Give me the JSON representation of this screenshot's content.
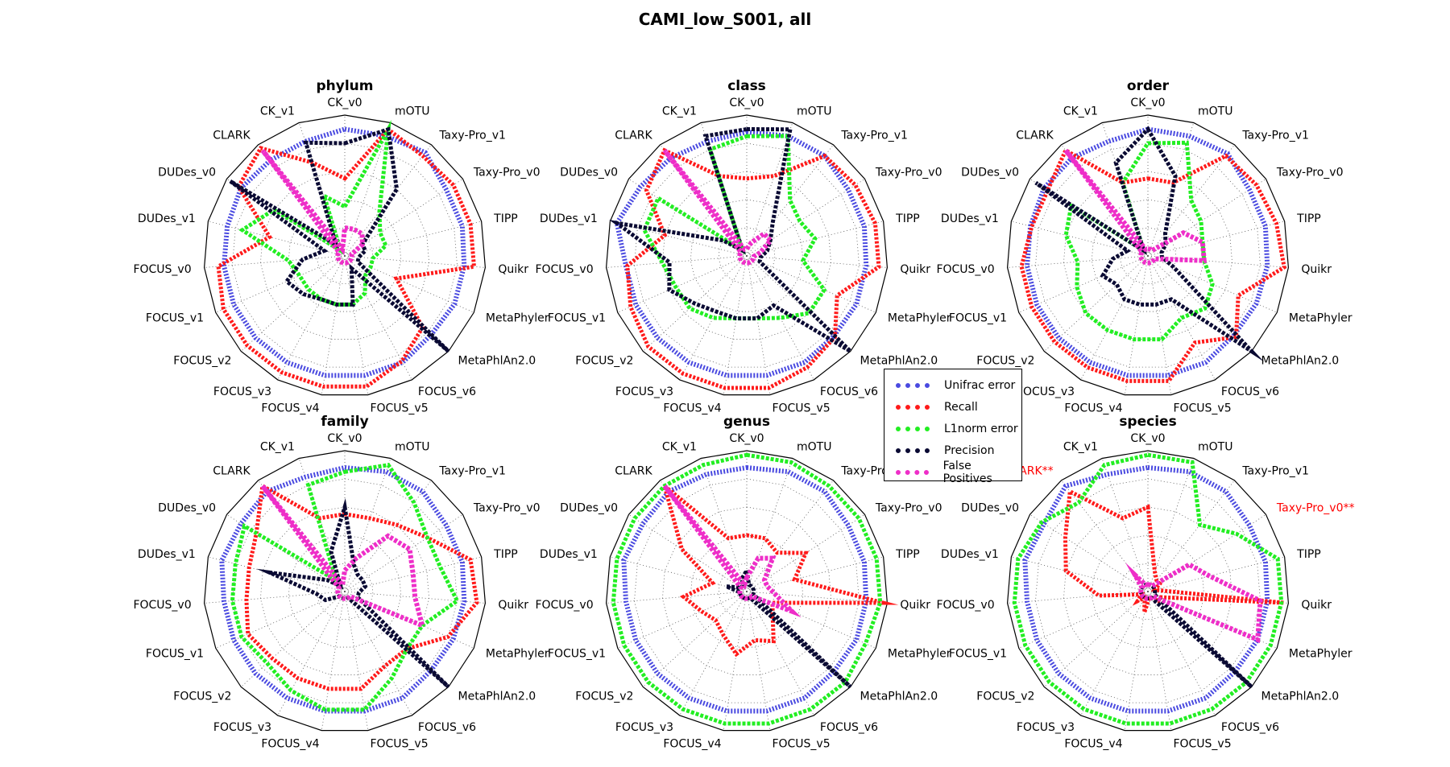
{
  "figure_title": "CAMI_low_S001, all",
  "legend": [
    {
      "key": "unifrac",
      "label": "Unifrac error",
      "color": "#4a4ae0"
    },
    {
      "key": "recall",
      "label": "Recall",
      "color": "#ff1a1a"
    },
    {
      "key": "l1norm",
      "label": "L1norm error",
      "color": "#22ee22"
    },
    {
      "key": "precision",
      "label": "Precision",
      "color": "#0a0a33"
    },
    {
      "key": "fp",
      "label": "False Positives",
      "color": "#ee2ec8"
    }
  ],
  "chart_data": [
    {
      "type": "radar",
      "title": "phylum",
      "axes": [
        "CK_v0",
        "mOTU",
        "Taxy-Pro_v1",
        "Taxy-Pro_v0",
        "TIPP",
        "Quikr",
        "MetaPhyler",
        "MetaPhlAn2.0",
        "FOCUS_v6",
        "FOCUS_v5",
        "FOCUS_v4",
        "FOCUS_v3",
        "FOCUS_v2",
        "FOCUS_v1",
        "FOCUS_v0",
        "DUDes_v1",
        "DUDes_v0",
        "CLARK",
        "CK_v1"
      ],
      "highlighted_axes": [],
      "rlim": [
        0,
        1
      ],
      "grid": true,
      "series": [
        {
          "name": "Unifrac error",
          "values": [
            0.9,
            0.9,
            0.93,
            0.86,
            0.86,
            0.85,
            0.85,
            0.83,
            0.86,
            0.86,
            0.86,
            0.86,
            0.86,
            0.86,
            0.86,
            0.86,
            0.88,
            0.86,
            0.86
          ]
        },
        {
          "name": "Recall",
          "values": [
            0.55,
            0.95,
            0.9,
            0.92,
            0.92,
            0.92,
            0.4,
            0.75,
            0.85,
            0.94,
            0.94,
            0.94,
            0.94,
            0.94,
            0.9,
            0.55,
            0.9,
            0.97,
            0.7
          ]
        },
        {
          "name": "L1norm error",
          "values": [
            0.35,
            0.95,
            0.4,
            0.3,
            0.3,
            0.2,
            0.2,
            0.2,
            0.3,
            0.35,
            0.35,
            0.35,
            0.35,
            0.35,
            0.4,
            0.75,
            0.6,
            0.05,
            0.45
          ]
        },
        {
          "name": "Precision",
          "values": [
            0.8,
            0.95,
            0.6,
            0.15,
            0.15,
            0.1,
            0.1,
            1.0,
            0.1,
            0.35,
            0.35,
            0.35,
            0.4,
            0.45,
            0.3,
            0.15,
            0.97,
            0.1,
            0.85
          ]
        },
        {
          "name": "False Positives",
          "values": [
            0.2,
            0.2,
            0.2,
            0.15,
            0.05,
            0.05,
            0.05,
            0.05,
            0.05,
            0.05,
            0.05,
            0.05,
            0.05,
            0.05,
            0.05,
            0.05,
            0.05,
            0.95,
            0.05
          ]
        }
      ]
    },
    {
      "type": "radar",
      "title": "class",
      "axes": [
        "CK_v0",
        "mOTU",
        "Taxy-Pro_v1",
        "Taxy-Pro_v0",
        "TIPP",
        "Quikr",
        "MetaPhyler",
        "MetaPhlAn2.0",
        "FOCUS_v6",
        "FOCUS_v5",
        "FOCUS_v4",
        "FOCUS_v3",
        "FOCUS_v2",
        "FOCUS_v1",
        "FOCUS_v0",
        "DUDes_v1",
        "DUDes_v0",
        "CLARK",
        "CK_v1"
      ],
      "highlighted_axes": [],
      "rlim": [
        0,
        1
      ],
      "grid": true,
      "series": [
        {
          "name": "Unifrac error",
          "values": [
            0.88,
            0.9,
            0.9,
            0.86,
            0.86,
            0.85,
            0.85,
            0.84,
            0.86,
            0.86,
            0.86,
            0.86,
            0.86,
            0.86,
            0.86,
            0.95,
            0.9,
            0.88,
            0.86
          ]
        },
        {
          "name": "Recall",
          "values": [
            0.55,
            0.6,
            0.9,
            0.92,
            0.94,
            0.94,
            0.7,
            0.85,
            0.9,
            0.95,
            0.95,
            0.95,
            0.95,
            0.9,
            0.85,
            0.6,
            0.85,
            0.95,
            0.6
          ]
        },
        {
          "name": "L1norm error",
          "values": [
            0.85,
            0.9,
            0.5,
            0.45,
            0.5,
            0.4,
            0.6,
            0.6,
            0.5,
            0.45,
            0.45,
            0.5,
            0.55,
            0.55,
            0.6,
            0.75,
            0.75,
            0.05,
            0.8
          ]
        },
        {
          "name": "Precision",
          "values": [
            0.9,
            0.95,
            0.3,
            0.2,
            0.15,
            0.1,
            0.1,
            1.0,
            0.4,
            0.45,
            0.45,
            0.45,
            0.5,
            0.6,
            0.55,
            0.95,
            0.2,
            0.05,
            0.9
          ]
        },
        {
          "name": "False Positives",
          "values": [
            0.05,
            0.1,
            0.2,
            0.2,
            0.1,
            0.05,
            0.05,
            0.05,
            0.05,
            0.05,
            0.05,
            0.05,
            0.05,
            0.05,
            0.05,
            0.05,
            0.05,
            0.95,
            0.05
          ]
        }
      ]
    },
    {
      "type": "radar",
      "title": "order",
      "axes": [
        "CK_v0",
        "mOTU",
        "Taxy-Pro_v1",
        "Taxy-Pro_v0",
        "TIPP",
        "Quikr",
        "MetaPhyler",
        "MetaPhlAn2.0",
        "FOCUS_v6",
        "FOCUS_v5",
        "FOCUS_v4",
        "FOCUS_v3",
        "FOCUS_v2",
        "FOCUS_v1",
        "FOCUS_v0",
        "DUDes_v1",
        "DUDes_v0",
        "CLARK",
        "CK_v1"
      ],
      "highlighted_axes": [],
      "rlim": [
        0,
        1
      ],
      "grid": true,
      "series": [
        {
          "name": "Unifrac error",
          "values": [
            0.9,
            0.9,
            0.92,
            0.86,
            0.86,
            0.85,
            0.84,
            0.83,
            0.86,
            0.86,
            0.86,
            0.86,
            0.86,
            0.86,
            0.86,
            0.86,
            0.88,
            0.88,
            0.86
          ]
        },
        {
          "name": "Recall",
          "values": [
            0.55,
            0.55,
            0.9,
            0.92,
            0.94,
            0.97,
            0.7,
            0.85,
            0.7,
            0.9,
            0.9,
            0.9,
            0.9,
            0.9,
            0.9,
            0.85,
            0.85,
            0.95,
            0.55
          ]
        },
        {
          "name": "L1norm error",
          "values": [
            0.8,
            0.85,
            0.5,
            0.45,
            0.4,
            0.4,
            0.5,
            0.55,
            0.5,
            0.6,
            0.6,
            0.6,
            0.6,
            0.55,
            0.5,
            0.6,
            0.65,
            0.05,
            0.55
          ]
        },
        {
          "name": "Precision",
          "values": [
            0.9,
            0.6,
            0.2,
            0.15,
            0.1,
            0.1,
            0.2,
            1.0,
            0.35,
            0.35,
            0.35,
            0.35,
            0.3,
            0.35,
            0.25,
            0.15,
            0.95,
            0.05,
            0.7
          ]
        },
        {
          "name": "False Positives",
          "values": [
            0.05,
            0.05,
            0.05,
            0.3,
            0.4,
            0.4,
            0.05,
            0.05,
            0.05,
            0.05,
            0.05,
            0.05,
            0.05,
            0.05,
            0.05,
            0.05,
            0.05,
            0.95,
            0.05
          ]
        }
      ]
    },
    {
      "type": "radar",
      "title": "family",
      "axes": [
        "CK_v0",
        "mOTU",
        "Taxy-Pro_v1",
        "Taxy-Pro_v0",
        "TIPP",
        "Quikr",
        "MetaPhyler",
        "MetaPhlAn2.0",
        "FOCUS_v6",
        "FOCUS_v5",
        "FOCUS_v4",
        "FOCUS_v3",
        "FOCUS_v2",
        "FOCUS_v1",
        "FOCUS_v0",
        "DUDes_v1",
        "DUDes_v0",
        "CLARK",
        "CK_v1"
      ],
      "highlighted_axes": [],
      "rlim": [
        0,
        1
      ],
      "grid": true,
      "series": [
        {
          "name": "Unifrac error",
          "values": [
            0.88,
            0.9,
            0.9,
            0.86,
            0.86,
            0.85,
            0.84,
            0.83,
            0.86,
            0.86,
            0.86,
            0.86,
            0.86,
            0.86,
            0.86,
            0.9,
            0.88,
            0.9,
            0.86
          ]
        },
        {
          "name": "Recall",
          "values": [
            0.55,
            0.55,
            0.6,
            0.7,
            0.92,
            0.94,
            0.8,
            0.6,
            0.6,
            0.7,
            0.7,
            0.7,
            0.7,
            0.75,
            0.7,
            0.7,
            0.75,
            0.95,
            0.55
          ]
        },
        {
          "name": "L1norm error",
          "values": [
            0.85,
            0.95,
            0.8,
            0.7,
            0.7,
            0.8,
            0.6,
            0.6,
            0.7,
            0.85,
            0.85,
            0.8,
            0.75,
            0.8,
            0.8,
            0.8,
            0.85,
            0.1,
            0.8
          ]
        },
        {
          "name": "Precision",
          "values": [
            0.6,
            0.2,
            0.15,
            0.15,
            0.15,
            0.1,
            0.1,
            1.0,
            0.05,
            0.05,
            0.05,
            0.05,
            0.05,
            0.15,
            0.2,
            0.55,
            0.15,
            0.05,
            0.3
          ]
        },
        {
          "name": "False Positives",
          "values": [
            0.15,
            0.25,
            0.5,
            0.55,
            0.5,
            0.5,
            0.6,
            0.05,
            0.05,
            0.05,
            0.05,
            0.05,
            0.05,
            0.05,
            0.05,
            0.05,
            0.05,
            0.95,
            0.05
          ]
        }
      ]
    },
    {
      "type": "radar",
      "title": "genus",
      "axes": [
        "CK_v0",
        "mOTU",
        "Taxy-Pro_v1",
        "Taxy-Pro_v0",
        "TIPP",
        "Quikr",
        "MetaPhyler",
        "MetaPhlAn2.0",
        "FOCUS_v6",
        "FOCUS_v5",
        "FOCUS_v4",
        "FOCUS_v3",
        "FOCUS_v2",
        "FOCUS_v1",
        "FOCUS_v0",
        "DUDes_v1",
        "DUDes_v0",
        "CLARK",
        "CK_v1"
      ],
      "highlighted_axes": [],
      "rlim": [
        0,
        1
      ],
      "grid": true,
      "series": [
        {
          "name": "Unifrac error",
          "values": [
            0.88,
            0.9,
            0.9,
            0.86,
            0.86,
            0.85,
            0.85,
            0.84,
            0.86,
            0.86,
            0.86,
            0.86,
            0.86,
            0.86,
            0.86,
            0.9,
            0.88,
            0.9,
            0.88
          ]
        },
        {
          "name": "Recall",
          "values": [
            0.4,
            0.4,
            0.35,
            0.5,
            0.35,
            0.97,
            0.2,
            0.25,
            0.4,
            0.35,
            0.45,
            0.35,
            0.3,
            0.35,
            0.45,
            0.25,
            0.55,
            0.95,
            0.4
          ]
        },
        {
          "name": "L1norm error",
          "values": [
            0.97,
            0.97,
            0.95,
            0.95,
            0.95,
            0.95,
            0.92,
            0.95,
            0.95,
            0.95,
            0.95,
            0.95,
            0.95,
            0.95,
            0.95,
            0.95,
            0.95,
            0.95,
            0.95
          ]
        },
        {
          "name": "Precision",
          "values": [
            0.15,
            0.05,
            0.05,
            0.05,
            0.05,
            0.05,
            0.05,
            1.0,
            0.05,
            0.05,
            0.05,
            0.05,
            0.05,
            0.05,
            0.05,
            0.15,
            0.05,
            0.05,
            0.1
          ]
        },
        {
          "name": "False Positives",
          "values": [
            0.1,
            0.25,
            0.3,
            0.15,
            0.15,
            0.2,
            0.35,
            0.05,
            0.05,
            0.05,
            0.05,
            0.05,
            0.05,
            0.05,
            0.05,
            0.05,
            0.05,
            0.95,
            0.05
          ]
        }
      ]
    },
    {
      "type": "radar",
      "title": "species",
      "axes": [
        "CK_v0",
        "mOTU",
        "Taxy-Pro_v1",
        "Taxy-Pro_v0",
        "TIPP",
        "Quikr",
        "MetaPhyler",
        "MetaPhlAn2.0",
        "FOCUS_v6",
        "FOCUS_v5",
        "FOCUS_v4",
        "FOCUS_v3",
        "FOCUS_v2",
        "FOCUS_v1",
        "FOCUS_v0",
        "DUDes_v1",
        "DUDes_v0",
        "CLARK",
        "CK_v1"
      ],
      "highlighted_axes": [
        "CLARK**",
        "Taxy-Pro_v0**"
      ],
      "rlim": [
        0,
        1
      ],
      "grid": true,
      "series": [
        {
          "name": "Unifrac error",
          "values": [
            0.88,
            0.9,
            0.9,
            0.86,
            0.86,
            0.85,
            0.85,
            0.84,
            0.86,
            0.86,
            0.86,
            0.86,
            0.86,
            0.86,
            0.86,
            0.9,
            0.88,
            0.95,
            0.88
          ]
        },
        {
          "name": "Recall",
          "values": [
            0.6,
            0.15,
            0.1,
            0.1,
            0.05,
            0.97,
            0.1,
            0.1,
            0.05,
            0.05,
            0.15,
            0.05,
            0.1,
            0.05,
            0.35,
            0.6,
            0.7,
            0.9,
            0.55
          ]
        },
        {
          "name": "L1norm error",
          "values": [
            0.97,
            0.97,
            0.6,
            0.75,
            0.95,
            0.95,
            0.95,
            0.95,
            0.95,
            0.95,
            0.95,
            0.95,
            0.95,
            0.95,
            0.95,
            0.95,
            0.9,
            0.8,
            0.95
          ]
        },
        {
          "name": "Precision",
          "values": [
            0.05,
            0.05,
            0.05,
            0.05,
            0.05,
            0.05,
            0.05,
            1.0,
            0.05,
            0.05,
            0.05,
            0.05,
            0.05,
            0.05,
            0.05,
            0.05,
            0.05,
            0.05,
            0.05
          ]
        },
        {
          "name": "False Positives",
          "values": [
            0.05,
            0.05,
            0.05,
            0.35,
            0.45,
            0.8,
            0.85,
            0.05,
            0.05,
            0.05,
            0.05,
            0.05,
            0.05,
            0.05,
            0.05,
            0.05,
            0.05,
            0.15,
            0.05
          ]
        }
      ]
    }
  ]
}
